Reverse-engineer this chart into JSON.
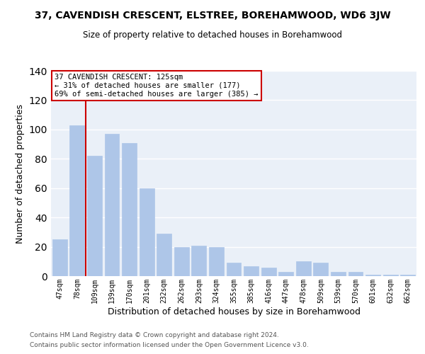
{
  "title": "37, CAVENDISH CRESCENT, ELSTREE, BOREHAMWOOD, WD6 3JW",
  "subtitle": "Size of property relative to detached houses in Borehamwood",
  "xlabel": "Distribution of detached houses by size in Borehamwood",
  "ylabel": "Number of detached properties",
  "categories": [
    "47sqm",
    "78sqm",
    "109sqm",
    "139sqm",
    "170sqm",
    "201sqm",
    "232sqm",
    "262sqm",
    "293sqm",
    "324sqm",
    "355sqm",
    "385sqm",
    "416sqm",
    "447sqm",
    "478sqm",
    "509sqm",
    "539sqm",
    "570sqm",
    "601sqm",
    "632sqm",
    "662sqm"
  ],
  "values": [
    25,
    103,
    82,
    97,
    91,
    60,
    29,
    20,
    21,
    20,
    9,
    7,
    6,
    3,
    10,
    9,
    3,
    3,
    1,
    1,
    1
  ],
  "bar_color": "#aec6e8",
  "bar_edgecolor": "#aec6e8",
  "vline_x": 1.5,
  "vline_color": "#cc0000",
  "annotation_text": "37 CAVENDISH CRESCENT: 125sqm\n← 31% of detached houses are smaller (177)\n69% of semi-detached houses are larger (385) →",
  "box_color": "#ffffff",
  "box_edgecolor": "#cc0000",
  "ylim": [
    0,
    140
  ],
  "yticks": [
    0,
    20,
    40,
    60,
    80,
    100,
    120,
    140
  ],
  "background_color": "#eaf0f8",
  "grid_color": "#ffffff",
  "footer1": "Contains HM Land Registry data © Crown copyright and database right 2024.",
  "footer2": "Contains public sector information licensed under the Open Government Licence v3.0."
}
